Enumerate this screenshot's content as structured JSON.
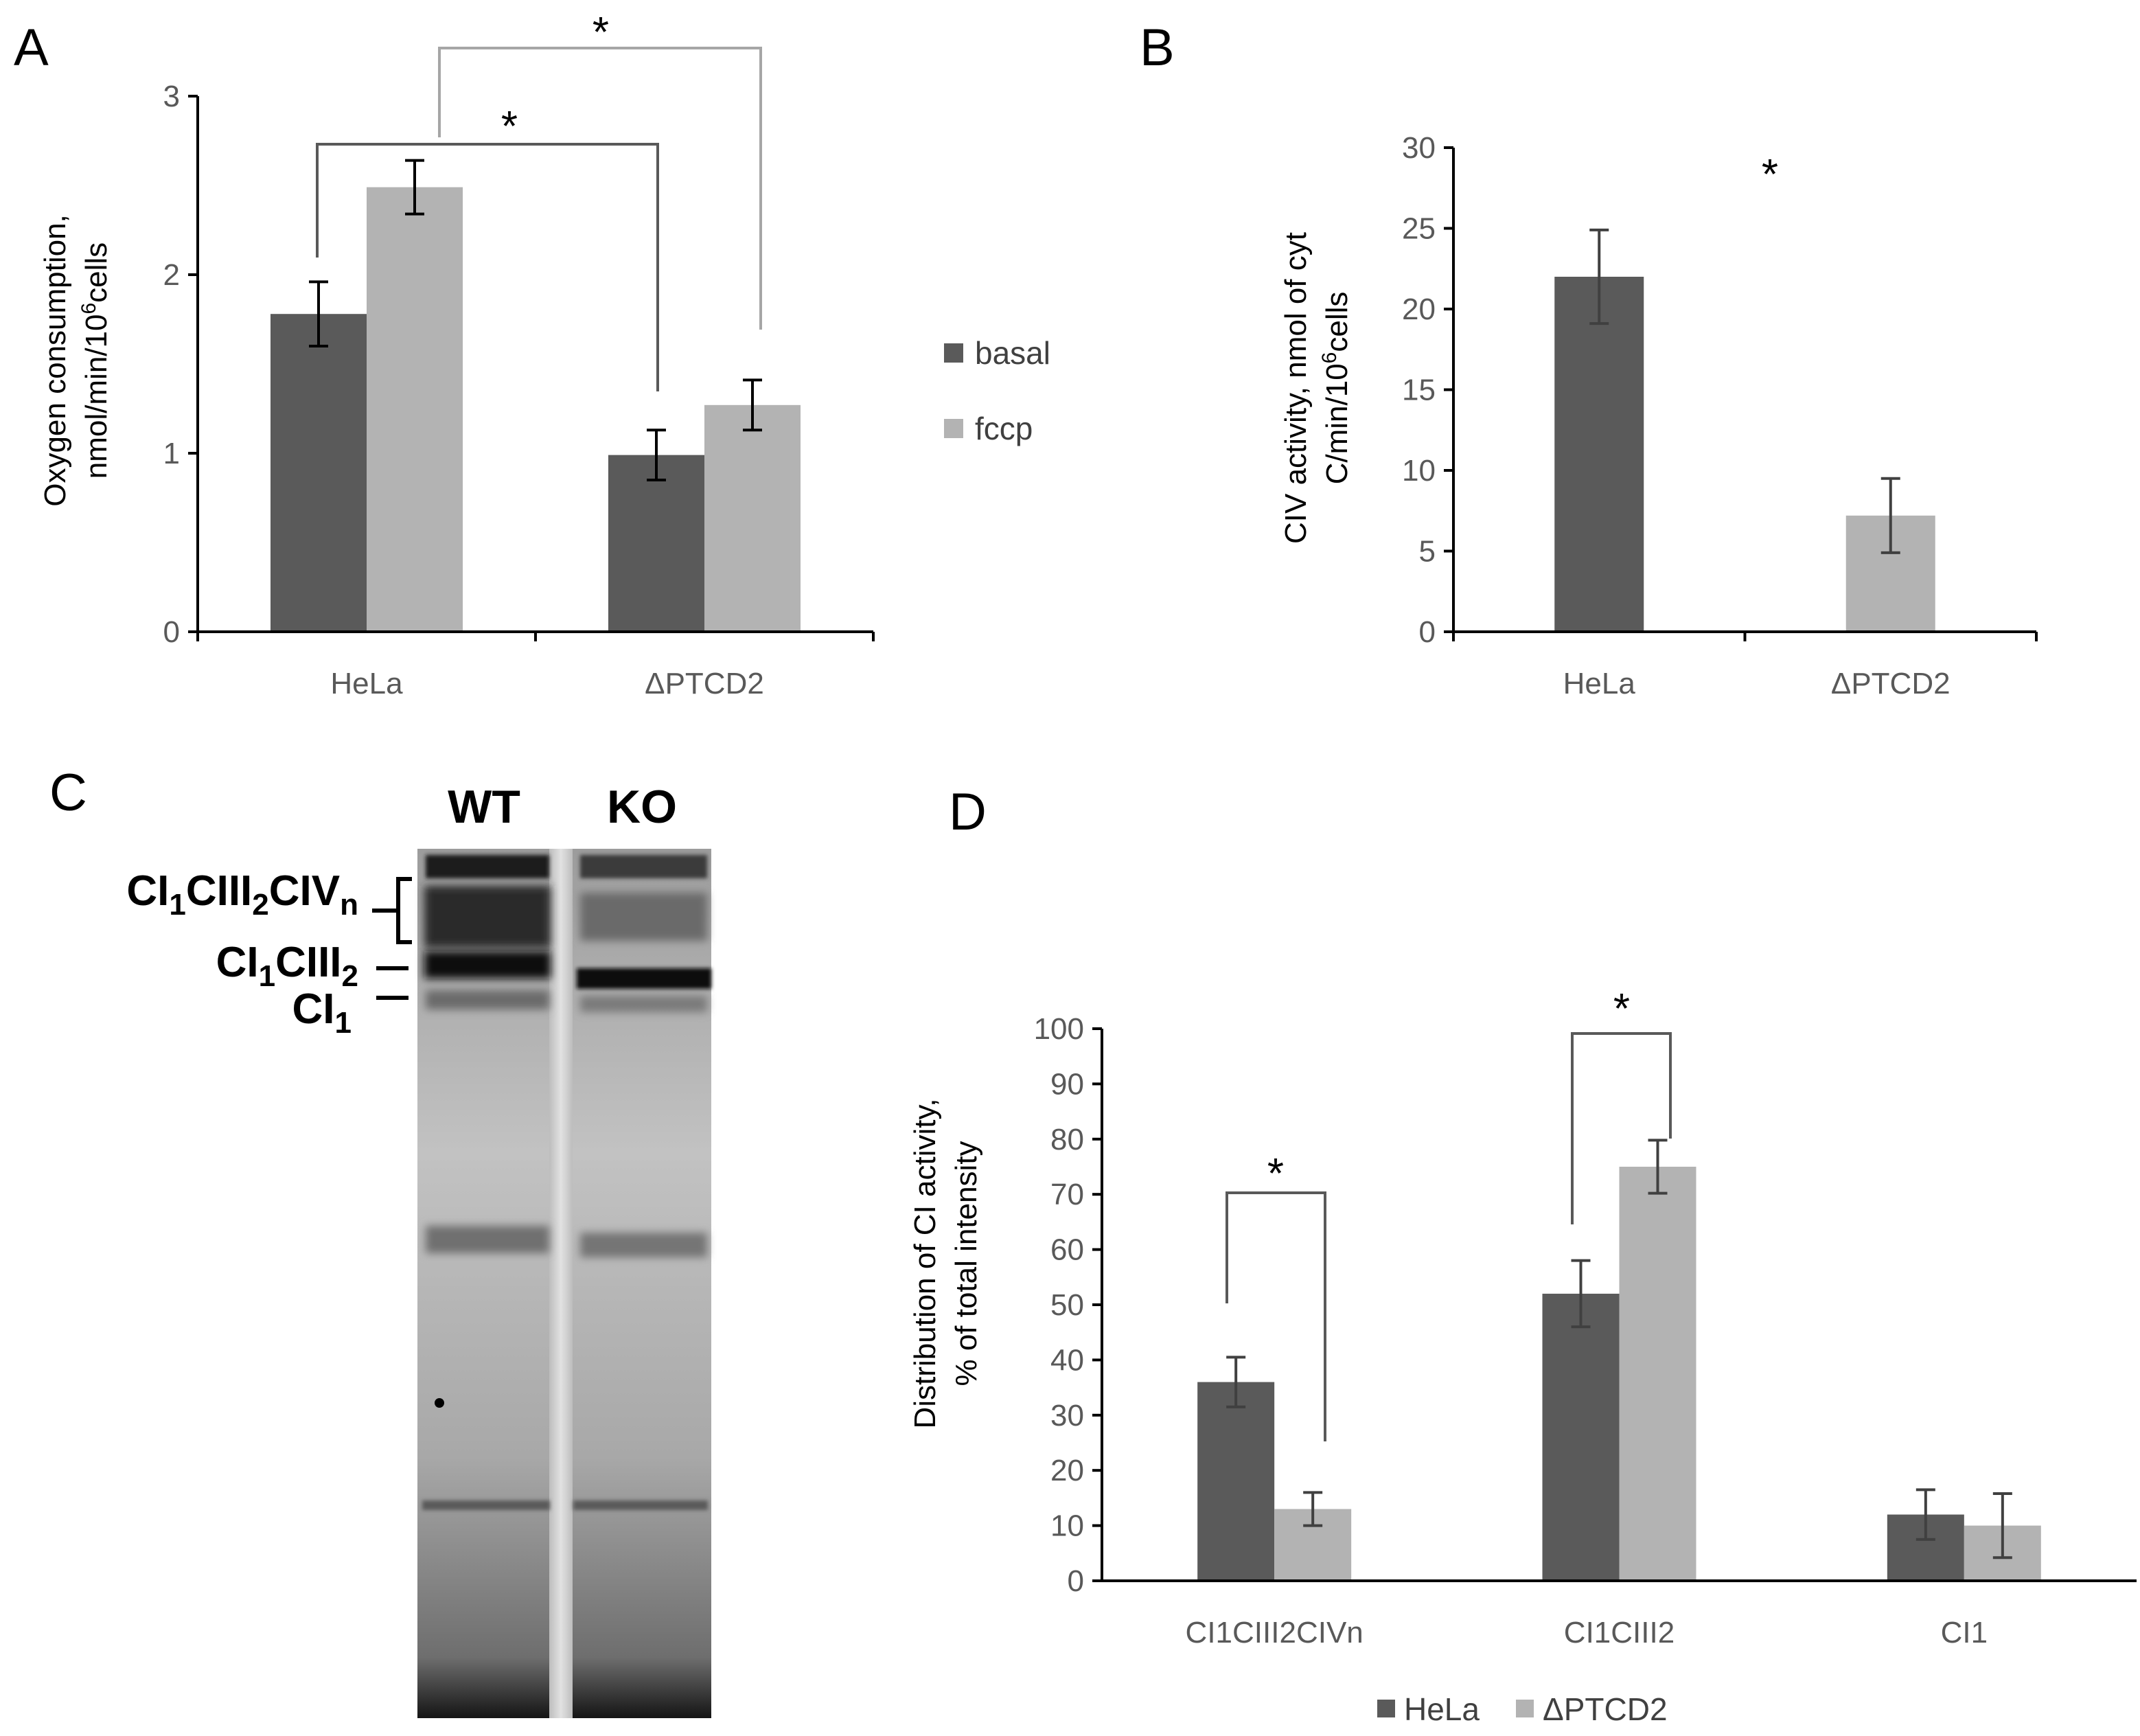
{
  "colors": {
    "dark": "#5a5a5a",
    "light": "#b3b3b3",
    "axis": "#000000",
    "sig_dark": "#595959",
    "sig_light": "#a6a6a6"
  },
  "chart_data": [
    {
      "panel": "A",
      "type": "bar",
      "title": "",
      "ylabel_line1": "Oxygen consumption,",
      "ylabel_line2": "nmol/min/10",
      "ylabel_sup": "6",
      "ylabel_tail": "cells",
      "categories": [
        "HeLa",
        "ΔPTCD2"
      ],
      "series": [
        {
          "name": "basal",
          "values": [
            1.78,
            0.99
          ],
          "errors": [
            0.18,
            0.14
          ]
        },
        {
          "name": "fccp",
          "values": [
            2.49,
            1.27
          ],
          "errors": [
            0.15,
            0.14
          ]
        }
      ],
      "ylim": [
        0,
        3
      ],
      "yticks": [
        "0",
        "1",
        "2",
        "3"
      ],
      "legend_position": "right",
      "annotations": [
        "*",
        "*"
      ]
    },
    {
      "panel": "B",
      "type": "bar",
      "title": "",
      "ylabel_line1": "CIV activity, nmol of cyt",
      "ylabel_line2": "C/min/10",
      "ylabel_sup": "6",
      "ylabel_tail": "cells",
      "categories": [
        "HeLa",
        "ΔPTCD2"
      ],
      "values": [
        22,
        7.2
      ],
      "errors": [
        2.9,
        2.3
      ],
      "ylim": [
        0,
        30
      ],
      "yticks": [
        "0",
        "5",
        "10",
        "15",
        "20",
        "25",
        "30"
      ],
      "annotations": [
        "*"
      ]
    },
    {
      "panel": "D",
      "type": "bar",
      "title": "",
      "ylabel_line1": "Distribution of CI activity,",
      "ylabel_line2": "% of total intensity",
      "categories": [
        "CI1CIII2CIVn",
        "CI1CIII2",
        "CI1"
      ],
      "series": [
        {
          "name": "HeLa",
          "values": [
            36,
            52,
            12
          ],
          "errors": [
            4.5,
            6,
            4.5
          ]
        },
        {
          "name": "ΔPTCD2",
          "values": [
            13,
            75,
            10
          ],
          "errors": [
            3,
            4.8,
            5.8
          ]
        }
      ],
      "ylim": [
        0,
        100
      ],
      "yticks": [
        "0",
        "10",
        "20",
        "30",
        "40",
        "50",
        "60",
        "70",
        "80",
        "90",
        "100"
      ],
      "legend_position": "bottom",
      "annotations": [
        "*",
        "*"
      ]
    }
  ],
  "panel_letters": {
    "a": "A",
    "b": "B",
    "c": "C",
    "d": "D"
  },
  "gel": {
    "lanes": [
      "WT",
      "KO"
    ],
    "labels": [
      {
        "base": "CI",
        "sub1": "1",
        "mid": "CIII",
        "sub2": "2",
        "mid2": "CIV",
        "sub3": "n"
      },
      {
        "base": "CI",
        "sub1": "1",
        "mid": "CIII",
        "sub2": "2"
      },
      {
        "base": "CI",
        "sub1": "1"
      }
    ]
  }
}
